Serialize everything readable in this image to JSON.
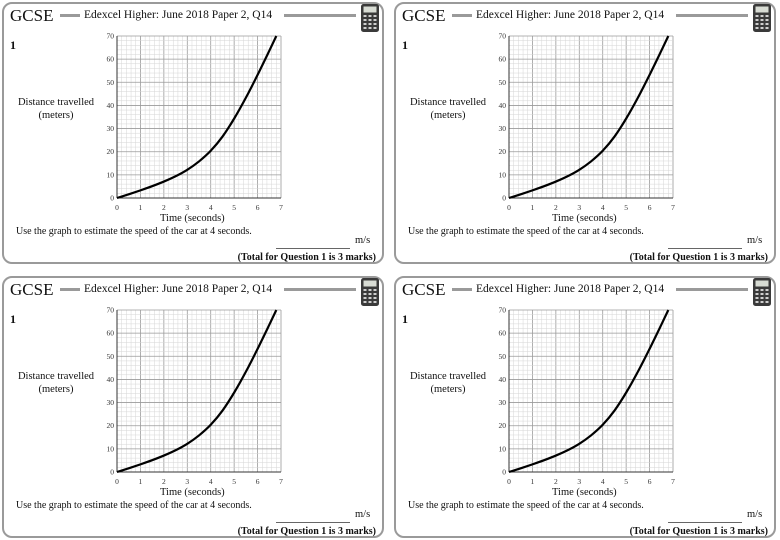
{
  "worksheet": {
    "badge": "GCSE",
    "source": "Edexcel Higher: June 2018 Paper 2, Q14",
    "question_number": "1",
    "y_axis_label": "Distance travelled",
    "y_axis_unit": "(meters)",
    "x_axis_label": "Time  (seconds)",
    "question_text": "Use the graph to estimate the speed of the car at 4 seconds.",
    "answer_unit": "m/s",
    "total_marks": "(Total for Question 1 is 3 marks)",
    "calculator_icon": "calculator-icon"
  },
  "chart_data": {
    "type": "line",
    "title": "",
    "xlabel": "Time  (seconds)",
    "ylabel": "Distance travelled (meters)",
    "xlim": [
      0,
      7
    ],
    "ylim": [
      0,
      70
    ],
    "x_ticks": [
      0,
      1,
      2,
      3,
      4,
      5,
      6,
      7
    ],
    "y_ticks": [
      0,
      10,
      20,
      30,
      40,
      50,
      60,
      70
    ],
    "grid": true,
    "series": [
      {
        "name": "distance",
        "x": [
          0,
          0.5,
          1,
          1.5,
          2,
          2.5,
          3,
          3.5,
          4,
          4.5,
          5,
          5.5,
          6,
          6.5,
          6.8
        ],
        "y": [
          0,
          1.6,
          3.3,
          5.1,
          7.1,
          9.4,
          12.2,
          15.8,
          20.4,
          26.5,
          34.3,
          43.3,
          53.2,
          63.6,
          70
        ]
      }
    ]
  }
}
